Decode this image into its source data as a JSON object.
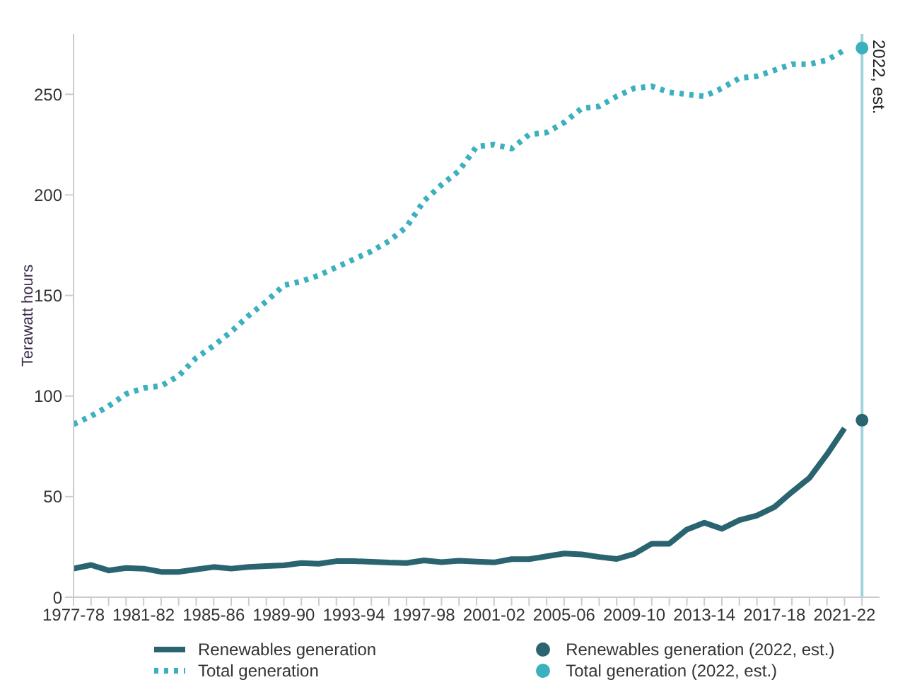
{
  "chart_data": {
    "type": "line",
    "ylabel": "Terawatt hours",
    "categories": [
      "1977-78",
      null,
      null,
      null,
      "1981-82",
      null,
      null,
      null,
      "1985-86",
      null,
      null,
      null,
      "1989-90",
      null,
      null,
      null,
      "1993-94",
      null,
      null,
      null,
      "1997-98",
      null,
      null,
      null,
      "2001-02",
      null,
      null,
      null,
      "2005-06",
      null,
      null,
      null,
      "2009-10",
      null,
      null,
      null,
      "2013-14",
      null,
      null,
      null,
      "2017-18",
      null,
      null,
      null,
      "2021-22",
      null
    ],
    "series": [
      {
        "name": "Renewables generation",
        "color": "#2a6471",
        "line_style": "solid",
        "values": [
          14.2,
          16,
          13.3,
          14.5,
          14.2,
          12.6,
          12.6,
          13.8,
          15,
          14.2,
          15,
          15.5,
          15.8,
          17,
          16.6,
          17.9,
          17.9,
          17.6,
          17.2,
          17,
          18.3,
          17.4,
          18.1,
          17.7,
          17.3,
          18.9,
          18.9,
          20.3,
          21.7,
          21.3,
          20,
          19,
          21.5,
          26.6,
          26.6,
          33.6,
          37,
          34,
          38.3,
          40.6,
          44.8,
          52.3,
          59.3,
          71,
          84,
          null
        ]
      },
      {
        "name": "Total generation",
        "color": "#3bb0bf",
        "line_style": "dotted",
        "values": [
          86,
          90,
          95,
          101,
          104,
          105,
          110,
          119,
          125,
          132,
          140,
          147,
          155,
          157,
          160,
          164,
          168,
          172,
          177,
          184,
          197,
          205,
          212,
          224,
          225,
          223,
          230,
          231,
          236,
          243,
          244,
          249,
          253,
          254,
          251,
          250,
          249,
          253,
          258,
          259,
          262,
          265,
          265,
          267,
          272,
          null
        ]
      },
      {
        "name": "Renewables generation (2022, est.)",
        "type": "scatter",
        "color": "#2a6471",
        "marker": "circle",
        "values": [
          null,
          null,
          null,
          null,
          null,
          null,
          null,
          null,
          null,
          null,
          null,
          null,
          null,
          null,
          null,
          null,
          null,
          null,
          null,
          null,
          null,
          null,
          null,
          null,
          null,
          null,
          null,
          null,
          null,
          null,
          null,
          null,
          null,
          null,
          null,
          null,
          null,
          null,
          null,
          null,
          null,
          null,
          null,
          null,
          null,
          88
        ]
      },
      {
        "name": "Total generation (2022, est.)",
        "type": "scatter",
        "color": "#3bb0bf",
        "marker": "circle",
        "values": [
          null,
          null,
          null,
          null,
          null,
          null,
          null,
          null,
          null,
          null,
          null,
          null,
          null,
          null,
          null,
          null,
          null,
          null,
          null,
          null,
          null,
          null,
          null,
          null,
          null,
          null,
          null,
          null,
          null,
          null,
          null,
          null,
          null,
          null,
          null,
          null,
          null,
          null,
          null,
          null,
          null,
          null,
          null,
          null,
          null,
          273
        ]
      }
    ],
    "ylim": [
      0,
      280
    ],
    "yticks": [
      0,
      50,
      100,
      150,
      200,
      250
    ],
    "ref_lines": [
      {
        "axis": "x",
        "label": "2022, est.",
        "color": "#9fd4dc"
      }
    ],
    "marker": "none",
    "legend": "bottom"
  }
}
